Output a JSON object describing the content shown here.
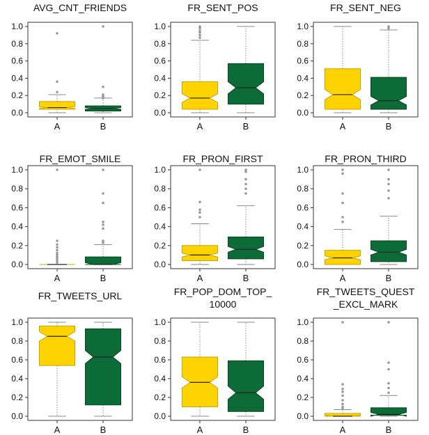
{
  "chart_data": [
    {
      "type": "box",
      "title": "AVG_CNT_FRIENDS",
      "categories": [
        "A",
        "B"
      ],
      "ylim": [
        0,
        1
      ],
      "yticks": [
        "0.0",
        "0.2",
        "0.4",
        "0.6",
        "0.8",
        "1.0"
      ],
      "boxes": [
        {
          "name": "A",
          "whislo": 0.0,
          "q1": 0.04,
          "med": 0.06,
          "q3": 0.13,
          "whishi": 0.21,
          "notch": [
            0.05,
            0.07
          ],
          "fliers": [
            0.92,
            0.36,
            0.24
          ]
        },
        {
          "name": "B",
          "whislo": 0.0,
          "q1": 0.02,
          "med": 0.05,
          "q3": 0.08,
          "whishi": 0.17,
          "notch": [
            0.04,
            0.06
          ],
          "fliers": [
            1.0,
            0.3,
            0.21,
            0.19,
            0.18,
            0.17
          ]
        }
      ]
    },
    {
      "type": "box",
      "title": "FR_SENT_POS",
      "categories": [
        "A",
        "B"
      ],
      "ylim": [
        0,
        1
      ],
      "yticks": [
        "0.0",
        "0.2",
        "0.4",
        "0.6",
        "0.8",
        "1.0"
      ],
      "boxes": [
        {
          "name": "A",
          "whislo": 0.0,
          "q1": 0.04,
          "med": 0.17,
          "q3": 0.36,
          "whishi": 0.84,
          "notch": [
            0.12,
            0.22
          ],
          "fliers": [
            1.0,
            0.98,
            0.95,
            0.93,
            0.9,
            0.87
          ]
        },
        {
          "name": "B",
          "whislo": 0.0,
          "q1": 0.1,
          "med": 0.29,
          "q3": 0.57,
          "whishi": 1.0,
          "notch": [
            0.22,
            0.36
          ],
          "fliers": []
        }
      ]
    },
    {
      "type": "box",
      "title": "FR_SENT_NEG",
      "categories": [
        "A",
        "B"
      ],
      "ylim": [
        0,
        1
      ],
      "yticks": [
        "0.0",
        "0.2",
        "0.4",
        "0.6",
        "0.8",
        "1.0"
      ],
      "boxes": [
        {
          "name": "A",
          "whislo": 0.0,
          "q1": 0.04,
          "med": 0.21,
          "q3": 0.51,
          "whishi": 1.0,
          "notch": [
            0.15,
            0.27
          ],
          "fliers": []
        },
        {
          "name": "B",
          "whislo": 0.0,
          "q1": 0.04,
          "med": 0.14,
          "q3": 0.41,
          "whishi": 0.96,
          "notch": [
            0.09,
            0.19
          ],
          "fliers": [
            1.0,
            0.98
          ]
        }
      ]
    },
    {
      "type": "box",
      "title": "FR_EMOT_SMILE",
      "categories": [
        "A",
        "B"
      ],
      "ylim": [
        0,
        1
      ],
      "yticks": [
        "0.0",
        "0.2",
        "0.4",
        "0.6",
        "0.8",
        "1.0"
      ],
      "boxes": [
        {
          "name": "A",
          "whislo": 0.0,
          "q1": 0.0,
          "med": 0.0,
          "q3": 0.0,
          "whishi": 0.0,
          "notch": [
            0.0,
            0.0
          ],
          "fliers": [
            1.0,
            0.25,
            0.21,
            0.18,
            0.15,
            0.12,
            0.1,
            0.08,
            0.06,
            0.04,
            0.02
          ]
        },
        {
          "name": "B",
          "whislo": 0.0,
          "q1": 0.0,
          "med": 0.0,
          "q3": 0.08,
          "whishi": 0.21,
          "notch": [
            0.0,
            0.02
          ],
          "fliers": [
            1.0,
            0.75,
            0.65,
            0.45,
            0.42,
            0.38,
            0.25,
            0.23
          ]
        }
      ]
    },
    {
      "type": "box",
      "title": "FR_PRON_FIRST",
      "categories": [
        "A",
        "B"
      ],
      "ylim": [
        0,
        1
      ],
      "yticks": [
        "0.0",
        "0.2",
        "0.4",
        "0.6",
        "0.8",
        "1.0"
      ],
      "boxes": [
        {
          "name": "A",
          "whislo": 0.0,
          "q1": 0.04,
          "med": 0.1,
          "q3": 0.2,
          "whishi": 0.43,
          "notch": [
            0.08,
            0.12
          ],
          "fliers": [
            1.0,
            0.66,
            0.58,
            0.55,
            0.5
          ]
        },
        {
          "name": "B",
          "whislo": 0.0,
          "q1": 0.06,
          "med": 0.16,
          "q3": 0.29,
          "whishi": 0.62,
          "notch": [
            0.13,
            0.19
          ],
          "fliers": [
            1.0,
            0.98,
            0.9,
            0.85,
            0.8,
            0.75
          ]
        }
      ]
    },
    {
      "type": "box",
      "title": "FR_PRON_THIRD",
      "categories": [
        "A",
        "B"
      ],
      "ylim": [
        0,
        1
      ],
      "yticks": [
        "0.0",
        "0.2",
        "0.4",
        "0.6",
        "0.8",
        "1.0"
      ],
      "boxes": [
        {
          "name": "A",
          "whislo": 0.0,
          "q1": 0.0,
          "med": 0.07,
          "q3": 0.15,
          "whishi": 0.37,
          "notch": [
            0.05,
            0.09
          ],
          "fliers": [
            1.0,
            0.96,
            0.75,
            0.65,
            0.5,
            0.45
          ]
        },
        {
          "name": "B",
          "whislo": 0.0,
          "q1": 0.03,
          "med": 0.13,
          "q3": 0.25,
          "whishi": 0.51,
          "notch": [
            0.1,
            0.16
          ],
          "fliers": [
            1.0,
            0.9,
            0.85,
            0.78,
            0.7
          ]
        }
      ]
    },
    {
      "type": "box",
      "title": "FR_TWEETS_URL",
      "categories": [
        "A",
        "B"
      ],
      "ylim": [
        0,
        1
      ],
      "yticks": [
        "0.0",
        "0.2",
        "0.4",
        "0.6",
        "0.8",
        "1.0"
      ],
      "boxes": [
        {
          "name": "A",
          "whislo": 0.0,
          "q1": 0.54,
          "med": 0.85,
          "q3": 0.96,
          "whishi": 1.0,
          "notch": [
            0.8,
            0.9
          ],
          "fliers": []
        },
        {
          "name": "B",
          "whislo": 0.0,
          "q1": 0.12,
          "med": 0.63,
          "q3": 0.93,
          "whishi": 1.0,
          "notch": [
            0.56,
            0.7
          ],
          "fliers": []
        }
      ]
    },
    {
      "type": "box",
      "title": "FR_POP_DOM_TOP_\n10000",
      "categories": [
        "A",
        "B"
      ],
      "ylim": [
        0,
        1
      ],
      "yticks": [
        "0.0",
        "0.2",
        "0.4",
        "0.6",
        "0.8",
        "1.0"
      ],
      "boxes": [
        {
          "name": "A",
          "whislo": 0.0,
          "q1": 0.1,
          "med": 0.36,
          "q3": 0.63,
          "whishi": 1.0,
          "notch": [
            0.3,
            0.42
          ],
          "fliers": []
        },
        {
          "name": "B",
          "whislo": 0.0,
          "q1": 0.05,
          "med": 0.25,
          "q3": 0.59,
          "whishi": 1.0,
          "notch": [
            0.18,
            0.32
          ],
          "fliers": []
        }
      ]
    },
    {
      "type": "box",
      "title": "FR_TWEETS_QUEST\n_EXCL_MARK",
      "categories": [
        "A",
        "B"
      ],
      "ylim": [
        0,
        1
      ],
      "yticks": [
        "0.0",
        "0.2",
        "0.4",
        "0.6",
        "0.8",
        "1.0"
      ],
      "boxes": [
        {
          "name": "A",
          "whislo": 0.0,
          "q1": 0.0,
          "med": 0.0,
          "q3": 0.03,
          "whishi": 0.07,
          "notch": [
            0.0,
            0.01
          ],
          "fliers": [
            1.0,
            0.34,
            0.29,
            0.26,
            0.22,
            0.17,
            0.13,
            0.1,
            0.08
          ]
        },
        {
          "name": "B",
          "whislo": 0.0,
          "q1": 0.01,
          "med": 0.02,
          "q3": 0.09,
          "whishi": 0.22,
          "notch": [
            0.0,
            0.04
          ],
          "fliers": [
            1.0,
            0.57,
            0.5,
            0.35,
            0.3,
            0.25
          ]
        }
      ]
    }
  ],
  "colors": {
    "A": "#ffd300",
    "B": "#0d6b38",
    "box_edge_A": "#c9a400",
    "box_edge_B": "#06461f",
    "axis": "#333333",
    "whisker": "#888888",
    "flier": "#999999"
  }
}
